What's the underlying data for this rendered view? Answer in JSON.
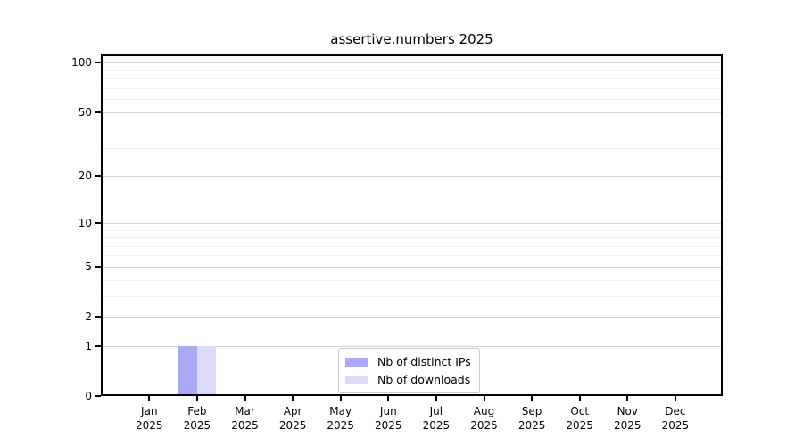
{
  "chart_data": {
    "type": "bar",
    "title": "assertive.numbers 2025",
    "categories": [
      "Jan",
      "Feb",
      "Mar",
      "Apr",
      "May",
      "Jun",
      "Jul",
      "Aug",
      "Sep",
      "Oct",
      "Nov",
      "Dec"
    ],
    "x_axis": {
      "year": "2025"
    },
    "series": [
      {
        "name": "Nb of distinct IPs",
        "color": "#a9a9f5",
        "values": [
          0,
          1,
          0,
          0,
          0,
          0,
          0,
          0,
          0,
          0,
          0,
          0
        ]
      },
      {
        "name": "Nb of downloads",
        "color": "#dbdbf9",
        "values": [
          0,
          1,
          0,
          0,
          0,
          0,
          0,
          0,
          0,
          0,
          0,
          0
        ]
      }
    ],
    "y_axis": {
      "scale": "log1p",
      "tick_values": [
        0,
        1,
        2,
        5,
        10,
        20,
        50,
        100
      ],
      "minor_gridline_values": [
        3,
        4,
        6,
        7,
        8,
        9,
        30,
        40,
        60,
        70,
        80,
        90
      ],
      "range": [
        0,
        112
      ]
    },
    "grid": "horizontal",
    "legend": {
      "position": "lower-center"
    },
    "colors": {
      "axis": "#000000",
      "major_grid": "#d4d4d4",
      "minor_grid": "#f0f0f0",
      "background": "#ffffff"
    }
  }
}
